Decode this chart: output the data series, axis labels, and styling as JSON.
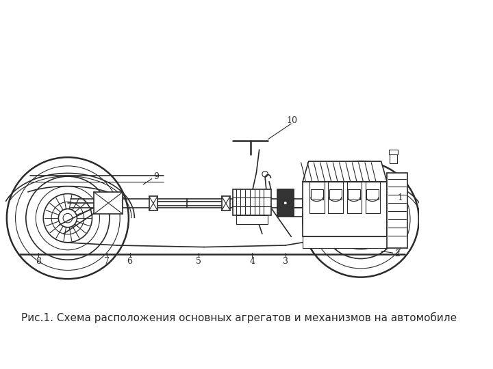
{
  "background_color": "#ffffff",
  "line_color": "#2a2a2a",
  "caption": "Рис.1. Схема расположения основных агрегатов и механизмов на автомобиле",
  "caption_fontsize": 11.0,
  "fig_width": 7.2,
  "fig_height": 5.4,
  "dpi": 100
}
